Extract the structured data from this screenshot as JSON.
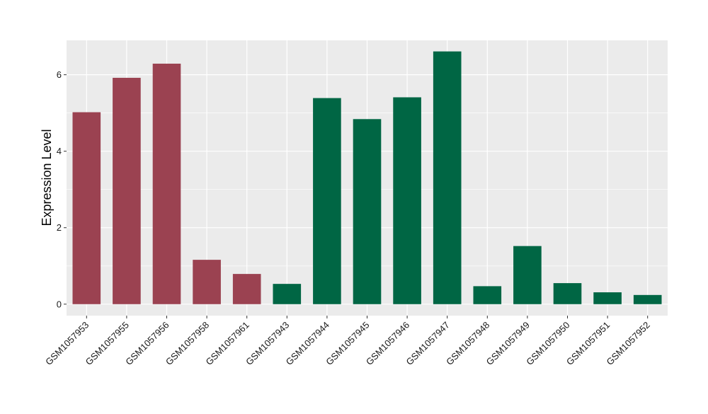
{
  "chart_data": {
    "type": "bar",
    "title": "",
    "xlabel": "",
    "ylabel": "Expression Level",
    "ylim": [
      -0.3,
      6.9
    ],
    "yticks": [
      0,
      2,
      4,
      6
    ],
    "grid": true,
    "background": "#EBEBEB",
    "grid_color": "#FFFFFF",
    "categories": [
      "GSM1057953",
      "GSM1057955",
      "GSM1057956",
      "GSM1057958",
      "GSM1057961",
      "GSM1057943",
      "GSM1057944",
      "GSM1057945",
      "GSM1057946",
      "GSM1057947",
      "GSM1057948",
      "GSM1057949",
      "GSM1057950",
      "GSM1057951",
      "GSM1057952"
    ],
    "values": [
      5.02,
      5.92,
      6.29,
      1.16,
      0.79,
      0.53,
      5.39,
      4.84,
      5.41,
      6.61,
      0.47,
      1.52,
      0.55,
      0.31,
      0.24
    ],
    "colors": [
      "#9B4251",
      "#9B4251",
      "#9B4251",
      "#9B4251",
      "#9B4251",
      "#006644",
      "#006644",
      "#006644",
      "#006644",
      "#006644",
      "#006644",
      "#006644",
      "#006644",
      "#006644",
      "#006644"
    ]
  }
}
